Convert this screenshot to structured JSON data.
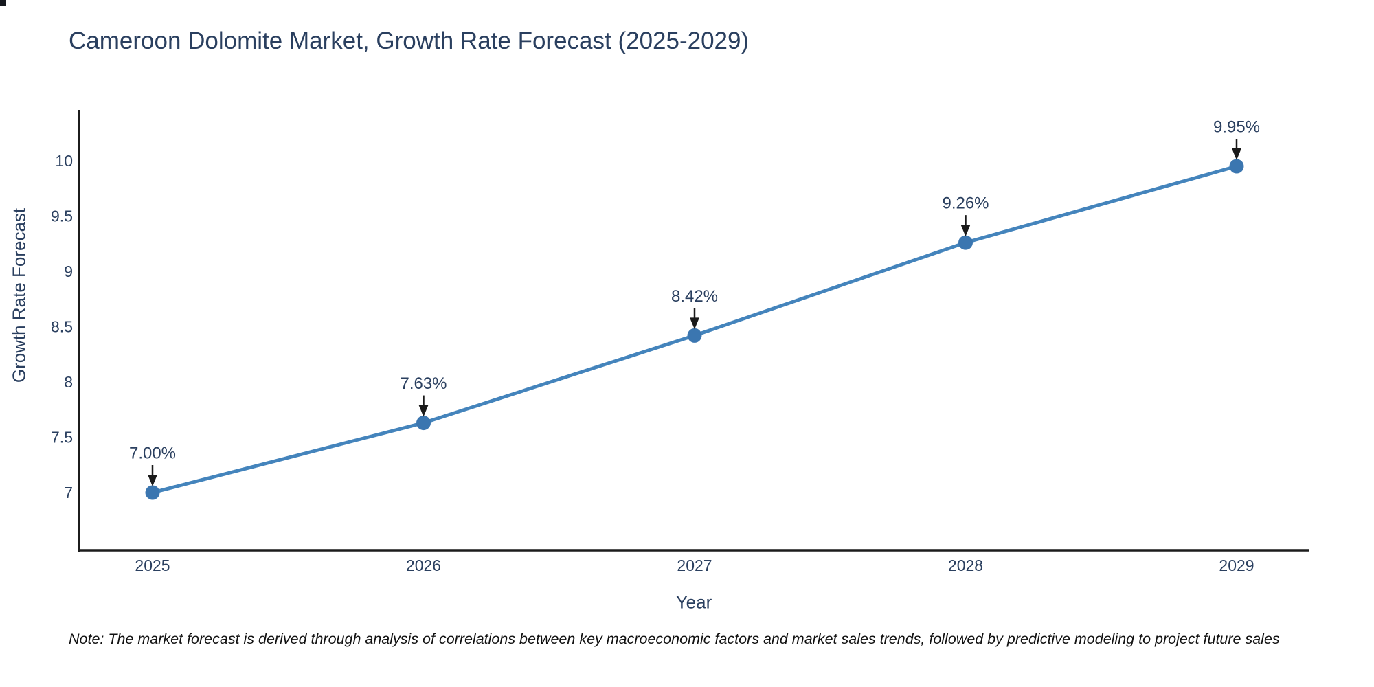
{
  "chart_data": {
    "type": "line",
    "title": "Cameroon Dolomite Market, Growth Rate Forecast (2025-2029)",
    "x": [
      2025,
      2026,
      2027,
      2028,
      2029
    ],
    "xticklabels": [
      "2025",
      "2026",
      "2027",
      "2028",
      "2029"
    ],
    "series": [
      {
        "name": "Growth Rate Forecast",
        "values": [
          7.0,
          7.63,
          8.42,
          9.26,
          9.95
        ],
        "point_labels": [
          "7.00%",
          "7.63%",
          "8.42%",
          "9.26%",
          "9.95%"
        ]
      }
    ],
    "xlabel": "Year",
    "ylabel": "Growth Rate Forecast",
    "yticks": [
      7,
      7.5,
      8,
      8.5,
      9,
      9.5,
      10
    ],
    "ytick_labels": [
      "7",
      "7.5",
      "8",
      "8.5",
      "9",
      "9.5",
      "10"
    ],
    "ylim": [
      6.55,
      10.45
    ],
    "grid": false,
    "legend_position": "none",
    "annotation_style": "value label above point with downward black arrow",
    "colors": {
      "line": "#4484bc",
      "marker": "#3b76b0",
      "axis_line": "#1c1c1c",
      "text": "#2a3f5f",
      "arrow": "#1a1a1a",
      "background": "#ffffff"
    }
  },
  "footnote": "Note: The market forecast is derived through analysis of correlations between key macroeconomic factors and market sales trends, followed by predictive modeling to project future sales"
}
